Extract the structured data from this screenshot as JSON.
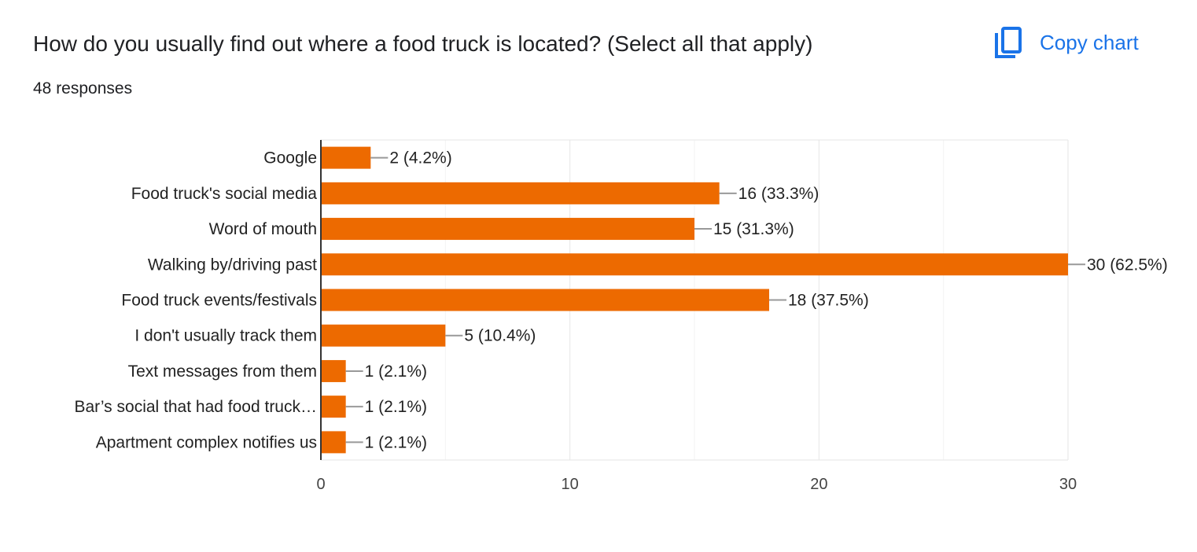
{
  "header": {
    "title": "How do you usually find out where a food truck is located? (Select all that apply)",
    "responses": "48 responses",
    "copy_label": "Copy chart",
    "copy_icon": "copy-icon",
    "accent": "#1a73e8"
  },
  "chart_data": {
    "type": "bar",
    "orientation": "horizontal",
    "categories": [
      "Google",
      "Food truck's social media",
      "Word of mouth",
      "Walking by/driving past",
      "Food truck events/festivals",
      "I don't usually track them",
      "Text messages from them",
      "Bar’s social that had food truck…",
      "Apartment complex notifies us"
    ],
    "values": [
      2,
      16,
      15,
      30,
      18,
      5,
      1,
      1,
      1
    ],
    "data_labels": [
      "2 (4.2%)",
      "16 (33.3%)",
      "15 (31.3%)",
      "30 (62.5%)",
      "18 (37.5%)",
      "5 (10.4%)",
      "1 (2.1%)",
      "1 (2.1%)",
      "1 (2.1%)"
    ],
    "xlim": [
      0,
      30
    ],
    "xticks": [
      0,
      10,
      20,
      30
    ],
    "grid": true,
    "bar_color": "#ed6a00"
  }
}
